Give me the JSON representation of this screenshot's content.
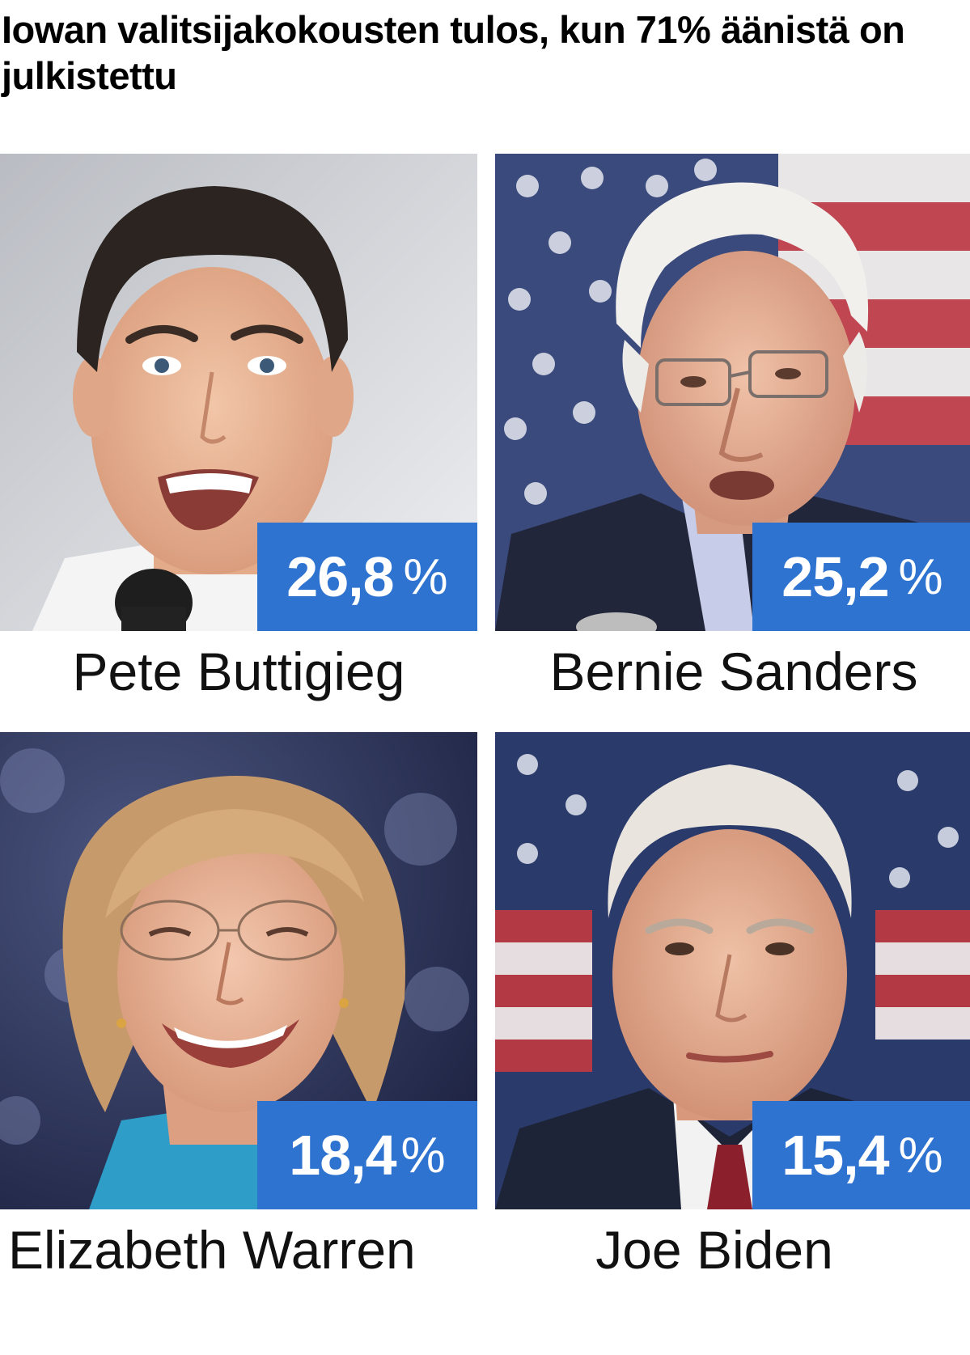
{
  "headline": "Iowan valitsijakokousten tulos, kun 71% äänistä on julkistettu",
  "colors": {
    "badge": "#2f73d1",
    "badge_text": "#ffffff",
    "text": "#111111"
  },
  "candidates": [
    {
      "name": "Pete Buttigieg",
      "value": "26,8",
      "unit": "%"
    },
    {
      "name": "Bernie Sanders",
      "value": "25,2",
      "unit": "%"
    },
    {
      "name": "Elizabeth Warren",
      "value": "18,4",
      "unit": "%"
    },
    {
      "name": "Joe Biden",
      "value": "15,4",
      "unit": "%"
    }
  ]
}
